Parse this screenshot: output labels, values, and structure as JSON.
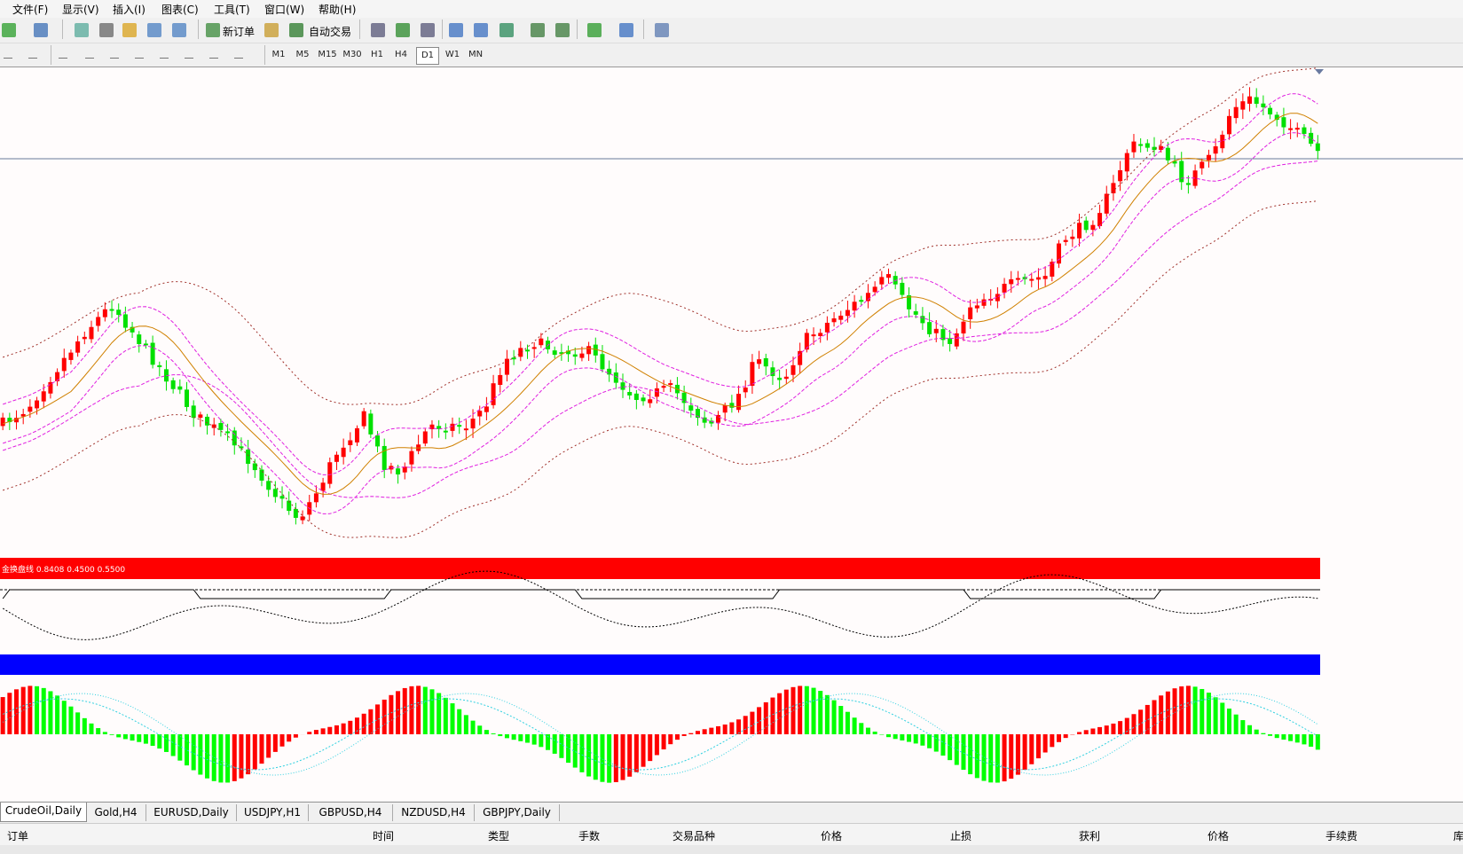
{
  "menu": [
    "文件(F)",
    "显示(V)",
    "插入(I)",
    "图表(C)",
    "工具(T)",
    "窗口(W)",
    "帮助(H)"
  ],
  "toolbar": {
    "new_order": "新订单",
    "auto_trade": "自动交易"
  },
  "timeframes": [
    "M1",
    "M5",
    "M15",
    "M30",
    "H1",
    "H4",
    "D1",
    "W1",
    "MN"
  ],
  "indicator_label": "金换盘线 0.8408 0.4500 0.5500",
  "tabs": [
    "CrudeOil,Daily",
    "Gold,H4",
    "EURUSD,Daily",
    "USDJPY,H1",
    "GBPUSD,H4",
    "NZDUSD,H4",
    "GBPJPY,Daily"
  ],
  "columns": [
    "订单",
    "时间",
    "类型",
    "手数",
    "交易品种",
    "价格",
    "止损",
    "获利",
    "价格",
    "手续费",
    "库"
  ]
}
